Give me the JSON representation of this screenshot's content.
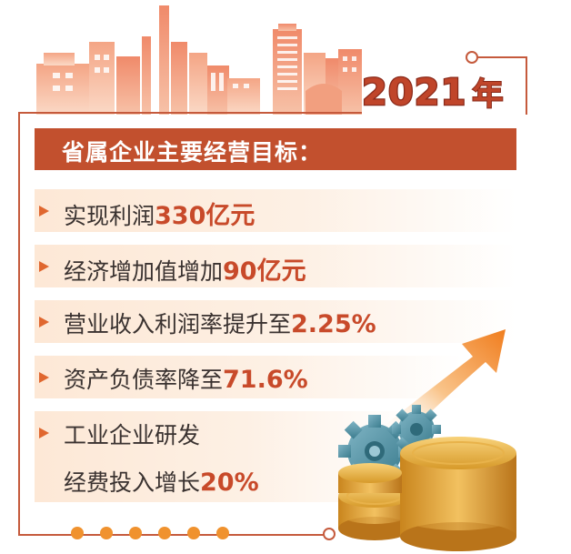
{
  "year": {
    "number": "2021",
    "unit": "年"
  },
  "heading": "省属企业主要经营目标：",
  "items": [
    {
      "text": "实现利润",
      "value": "330亿元"
    },
    {
      "text": "经济增加值增加",
      "value": "90亿元"
    },
    {
      "text": "营业收入利润率提升至",
      "value": "2.25%"
    },
    {
      "text": "资产负债率降至",
      "value": "71.6%"
    },
    {
      "text_line1": "工业企业研发",
      "text_line2": "经费投入增长",
      "value": "20%"
    }
  ],
  "colors": {
    "accent": "#c2502e",
    "orange": "#f0922e",
    "text": "#3a3230",
    "highlight": "#c84a2a"
  },
  "icons": [
    "city-skyline-illustration",
    "gear-icon",
    "coin-stack-illustration",
    "growth-arrow-icon"
  ]
}
